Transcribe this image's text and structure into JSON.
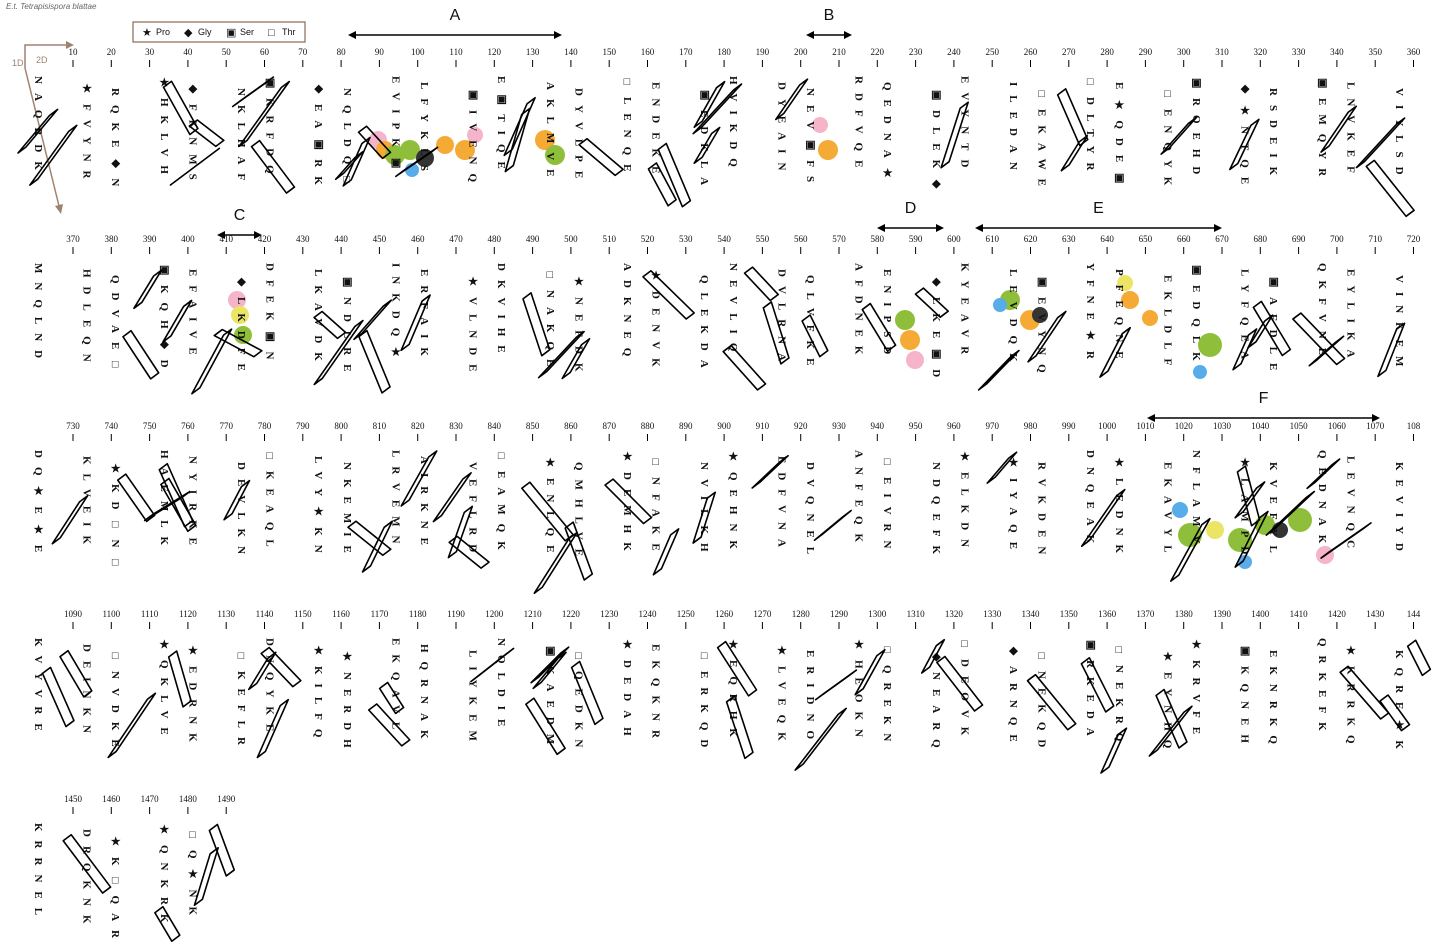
{
  "figure": {
    "title": "E.t. Tetrapisispora blattae",
    "axis_1d": "1D",
    "axis_2d": "2D",
    "legend": [
      {
        "symbol": "★",
        "label": "Pro"
      },
      {
        "symbol": "◆",
        "label": "Gly"
      },
      {
        "symbol": "▣",
        "label": "Ser"
      },
      {
        "symbol": "□",
        "label": "Thr"
      }
    ],
    "regions": [
      "A",
      "B",
      "C",
      "D",
      "E",
      "F"
    ],
    "rows": [
      {
        "ticks": [
          10,
          20,
          30,
          40,
          50,
          60,
          70,
          80,
          90,
          100,
          110,
          120,
          130,
          140,
          150,
          160,
          170,
          180,
          190,
          200,
          210,
          220,
          230,
          240,
          250,
          260,
          270,
          280,
          290,
          300,
          310,
          320,
          330,
          340,
          350,
          360
        ],
        "columns": [
          "NAQRDK",
          "★FVYNR",
          "RQKE◆N",
          "★HKLVH",
          "◆FKNMS",
          "NKLHAF",
          "▣KRFDQ",
          "◆EA▣RK",
          "NQLDQ□",
          "EVIPK▣",
          "LFYKLS",
          "▣IVENQ",
          "E▣TIQE",
          "AKLMVE",
          "DYVLPE",
          "□LENQE",
          "ENDEKE",
          "▣EDKLA",
          "HVIKDQ",
          "DYEAIN",
          "NEV▣FS",
          "RDFVQE",
          "QEDNA★",
          "▣DLEK◆",
          "EVYNTD",
          "ILEDAN",
          "□EKAWE",
          "□DLTYR",
          "E★QDE▣",
          "□ENQYK",
          "▣RQEHD",
          "◆★NTQE",
          "RSDEIK",
          "▣EMQYR",
          "LNVKEF",
          "VIYLSD"
        ]
      },
      {
        "ticks": [
          370,
          380,
          390,
          400,
          410,
          420,
          430,
          440,
          450,
          460,
          470,
          480,
          490,
          500,
          510,
          520,
          530,
          540,
          550,
          560,
          570,
          580,
          590,
          600,
          610,
          620,
          630,
          640,
          650,
          660,
          670,
          680,
          690,
          700,
          710,
          720
        ],
        "columns": [
          "MNQLND",
          "HDLEQN",
          "QDVAE□",
          "▣KQH◆D",
          "EFAIVE",
          "◆LKDFE",
          "DFEK▣N",
          "LKAVDK",
          "▣NDLRE",
          "INKDQ★",
          "ERFAIK",
          "★VLNDE",
          "DKVIHE",
          "□NAKQE",
          "★NEFDK",
          "ADKNEQ",
          "★DENVK",
          "QLEKDA",
          "NEVLIQ",
          "DVLRNA",
          "QLVFKE",
          "AFDNEK",
          "ENIPSD",
          "◆LKE▣D",
          "KYEAVR",
          "LEVDQK",
          "▣EVYNQ",
          "YFNE★R",
          "PFEQNE",
          "EKLDLF",
          "▣EDQLK",
          "LYFQEA",
          "▣AFDLE",
          "QKFVNE",
          "EYLIKA",
          "VINKEM"
        ]
      },
      {
        "ticks": [
          730,
          740,
          750,
          760,
          770,
          780,
          790,
          800,
          810,
          820,
          830,
          840,
          850,
          860,
          870,
          880,
          890,
          900,
          910,
          920,
          930,
          940,
          950,
          960,
          970,
          980,
          990,
          1000,
          1010,
          1020,
          1030,
          1040,
          1050,
          1060,
          1070,
          108
        ],
        "columns": [
          "DQ★E★E",
          "KLVEIK",
          "★KD□N□",
          "HAEMLK",
          "NYIRKE",
          "DEVLKN",
          "□KEAQL",
          "LVY★KN",
          "NKEMIE",
          "LRVEMN",
          "AIRKNE",
          "VEFLRD",
          "□EAMQK",
          "★ENLQE",
          "QMHLVE",
          "★DEMHK",
          "□NFAKE",
          "NVILKH",
          "★QEHNK",
          "EDFVNA",
          "DVQNEL",
          "ANFEQK",
          "□EIVRN",
          "NDQEFK",
          "★ELKDN",
          "★IYAQE",
          "RVKDEN",
          "DNQEAK",
          "★LEDNK",
          "EKAVYL",
          "NFLAMV",
          "★LAMPD",
          "KVEFYL",
          "QEDNAK",
          "LEVNQC",
          "KEVIYD"
        ]
      },
      {
        "ticks": [
          1090,
          1100,
          1110,
          1120,
          1130,
          1140,
          1150,
          1160,
          1170,
          1180,
          1190,
          1200,
          1210,
          1220,
          1230,
          1240,
          1250,
          1260,
          1270,
          1280,
          1290,
          1300,
          1310,
          1320,
          1330,
          1340,
          1350,
          1360,
          1370,
          1380,
          1390,
          1400,
          1410,
          1420,
          1430,
          144
        ],
        "columns": [
          "KVYVRE",
          "DEINKN",
          "□NVDKE",
          "★QKLVE",
          "★EDRNK",
          "□KEFLR",
          "DNQYKE",
          "★KILFQ",
          "★NERDH",
          "EKQAVL",
          "HQRNAK",
          "LIYKEM",
          "NQLDIE",
          "▣KAEDM",
          "□QEDKN",
          "★DEDAH",
          "EKQKNR",
          "□ERKQD",
          "★EQRHK",
          "★LVEQK",
          "ERIDNO",
          "★HEOKN",
          "□QREKN",
          "◆NEARQ",
          "□DEOVK",
          "◆ARNQE",
          "□NEKQD",
          "▣RKEDA",
          "□NEKRQ",
          "★EYNHQ",
          "★KRVFE",
          "▣KQNEH",
          "EKNRKQ",
          "QRKEFK",
          "★KRRKQ",
          "KQRE★K"
        ]
      },
      {
        "ticks": [
          1450,
          1460,
          1470,
          1480,
          1490
        ],
        "columns": [
          "KRRNEL",
          "DRQKNK",
          "★K□QAR",
          "★QNKRK",
          "□Q★NK"
        ]
      }
    ]
  }
}
